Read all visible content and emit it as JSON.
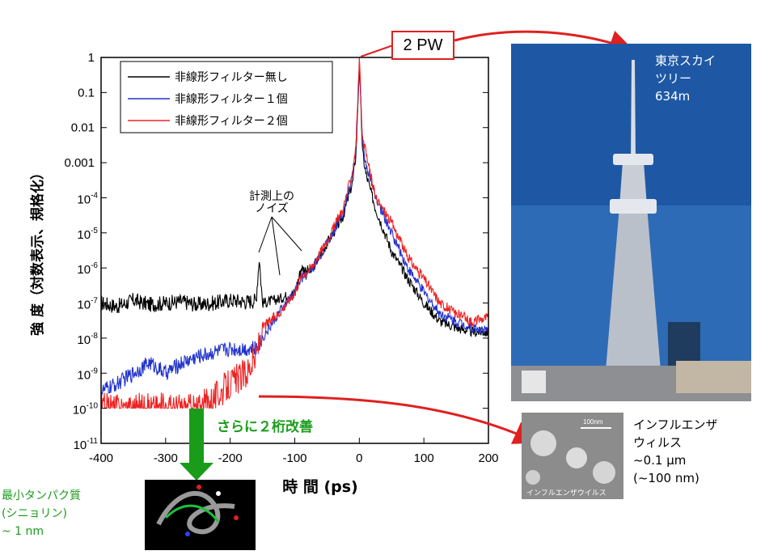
{
  "chart_data": {
    "type": "line",
    "title": "",
    "xlabel": "時 間 (ps)",
    "ylabel": "強 度（対数表示、規格化）",
    "xlim": [
      -400,
      200
    ],
    "ylim": [
      1e-11,
      1
    ],
    "y_scale": "log",
    "x_ticks": [
      "-400",
      "-300",
      "-200",
      "-100",
      "0",
      "100",
      "200"
    ],
    "y_ticks": [
      {
        "label": "1",
        "exp": 0
      },
      {
        "label": "0.1",
        "exp": -1
      },
      {
        "label": "0.01",
        "exp": -2
      },
      {
        "label": "0.001",
        "exp": -3
      },
      {
        "label": "10",
        "exp": -4
      },
      {
        "label": "10",
        "exp": -5
      },
      {
        "label": "10",
        "exp": -6
      },
      {
        "label": "10",
        "exp": -7
      },
      {
        "label": "10",
        "exp": -8
      },
      {
        "label": "10",
        "exp": -9
      },
      {
        "label": "10",
        "exp": -10
      },
      {
        "label": "10",
        "exp": -11
      }
    ],
    "legend_position": "top-left",
    "series": [
      {
        "name": "非線形フィルター無し",
        "color": "#000000",
        "x": [
          -400,
          -375,
          -350,
          -325,
          -300,
          -275,
          -250,
          -225,
          -200,
          -175,
          -160,
          -155,
          -150,
          -125,
          -100,
          -90,
          -75,
          -50,
          -25,
          -10,
          -5,
          0,
          5,
          10,
          25,
          50,
          75,
          100,
          125,
          150,
          175,
          200
        ],
        "y": [
          1e-07,
          8e-08,
          1.2e-07,
          9e-08,
          1e-07,
          1.1e-07,
          9e-08,
          1e-07,
          1.2e-07,
          1.1e-07,
          1.2e-07,
          2e-06,
          1e-07,
          1.3e-07,
          2e-07,
          1e-06,
          8e-07,
          5e-06,
          3e-05,
          0.0003,
          0.002,
          0.6,
          0.002,
          0.0005,
          5e-05,
          3e-06,
          5e-07,
          1e-07,
          3e-08,
          2e-08,
          1.5e-08,
          1.5e-08
        ]
      },
      {
        "name": "非線形フィルター１個",
        "color": "#2233cc",
        "x": [
          -400,
          -375,
          -350,
          -325,
          -300,
          -275,
          -250,
          -225,
          -200,
          -175,
          -160,
          -150,
          -125,
          -100,
          -90,
          -75,
          -50,
          -25,
          -10,
          -5,
          0,
          5,
          10,
          25,
          50,
          75,
          100,
          125,
          150,
          175,
          200
        ],
        "y": [
          3e-10,
          5e-10,
          1e-09,
          2e-09,
          1e-09,
          2e-09,
          3e-09,
          4e-09,
          5e-09,
          5e-09,
          5e-09,
          1e-08,
          5e-08,
          2e-07,
          5e-07,
          8e-07,
          5e-06,
          4e-05,
          0.0005,
          0.003,
          0.7,
          0.003,
          0.001,
          0.0001,
          1e-05,
          1e-06,
          2e-07,
          5e-08,
          3e-08,
          2e-08,
          1.5e-08
        ]
      },
      {
        "name": "非線形フィルター２個",
        "color": "#ee2222",
        "x": [
          -400,
          -375,
          -350,
          -325,
          -300,
          -275,
          -250,
          -225,
          -200,
          -175,
          -160,
          -150,
          -125,
          -100,
          -90,
          -75,
          -50,
          -25,
          -10,
          -5,
          0,
          5,
          10,
          25,
          50,
          75,
          100,
          125,
          150,
          175,
          200
        ],
        "y": [
          1e-10,
          1e-10,
          1e-10,
          1e-10,
          1e-10,
          1e-10,
          1e-10,
          2e-10,
          5e-10,
          1e-09,
          3e-09,
          2e-08,
          5e-08,
          2e-07,
          6e-07,
          1e-06,
          6e-06,
          5e-05,
          0.0006,
          0.004,
          0.9,
          0.004,
          0.002,
          0.0001,
          2e-05,
          2e-06,
          5e-07,
          1e-07,
          5e-08,
          3e-08,
          4e-08
        ]
      }
    ],
    "annotations": [
      "計測上の",
      "ノイズ"
    ]
  },
  "callout": {
    "text": "2 PW"
  },
  "tower": {
    "name_line1": "東京スカイ",
    "name_line2": "ツリー",
    "height": "634m"
  },
  "virus": {
    "scale": "100nm",
    "caption": "インフルエンザウイルス",
    "name_line1": "インフルエンザ",
    "name_line2": "ウィルス",
    "size_um": "~0.1 μm",
    "size_nm": "(~100 nm)"
  },
  "improvement": {
    "text": "さらに２桁改善"
  },
  "protein": {
    "line1": "最小タンパク質",
    "line2": "(シニョリン)",
    "line3": "~ 1 nm"
  },
  "colors": {
    "arrow_red": "#e02020",
    "arrow_green": "#1a9c1a"
  }
}
